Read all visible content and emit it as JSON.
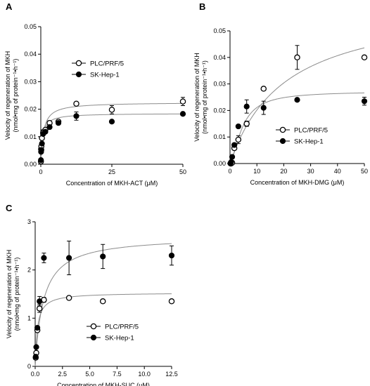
{
  "chart_data": [
    {
      "type": "scatter",
      "panel_label": "A",
      "xlabel": "Concentration of MKH-ACT (μM)",
      "ylabel_line1": "Velocity of regeneration of MKH",
      "ylabel_line2": "(nmol•mg of protein⁻¹•h⁻¹)",
      "xlim": [
        0,
        50
      ],
      "ylim": [
        0,
        0.05
      ],
      "xticks": [
        0,
        25,
        50
      ],
      "yticks": [
        0,
        0.01,
        0.02,
        0.03,
        0.04,
        0.05
      ],
      "xtick_labels": [
        "0",
        "25",
        "50"
      ],
      "ytick_labels": [
        "0.00",
        "0.01",
        "0.02",
        "0.03",
        "0.04",
        "0.05"
      ],
      "legend_position": "top-right",
      "series": [
        {
          "name": "PLC/PRF/5",
          "marker": "open-circle",
          "fit": {
            "vmax": 0.0225,
            "km": 0.9
          },
          "points": [
            {
              "x": 0.05,
              "y": 0.001,
              "err": 0
            },
            {
              "x": 0.1,
              "y": 0.0055,
              "err": 0
            },
            {
              "x": 0.2,
              "y": 0.0065,
              "err": 0
            },
            {
              "x": 0.4,
              "y": 0.0095,
              "err": 0
            },
            {
              "x": 0.8,
              "y": 0.0115,
              "err": 0.001
            },
            {
              "x": 1.6,
              "y": 0.0125,
              "err": 0.0005
            },
            {
              "x": 3.1,
              "y": 0.015,
              "err": 0.0008
            },
            {
              "x": 6.2,
              "y": 0.0155,
              "err": 0.0005
            },
            {
              "x": 12.5,
              "y": 0.022,
              "err": 0.0005
            },
            {
              "x": 25,
              "y": 0.0198,
              "err": 0.0015
            },
            {
              "x": 50,
              "y": 0.0228,
              "err": 0.0015
            }
          ]
        },
        {
          "name": "SK-Hep-1",
          "marker": "filled-circle",
          "fit": {
            "vmax": 0.0185,
            "km": 0.6
          },
          "points": [
            {
              "x": 0.05,
              "y": 0.0015,
              "err": 0
            },
            {
              "x": 0.1,
              "y": 0.0045,
              "err": 0
            },
            {
              "x": 0.2,
              "y": 0.0052,
              "err": 0
            },
            {
              "x": 0.4,
              "y": 0.0075,
              "err": 0
            },
            {
              "x": 0.8,
              "y": 0.011,
              "err": 0
            },
            {
              "x": 1.6,
              "y": 0.0118,
              "err": 0.0005
            },
            {
              "x": 3.1,
              "y": 0.0135,
              "err": 0.0005
            },
            {
              "x": 6.2,
              "y": 0.015,
              "err": 0.0005
            },
            {
              "x": 12.5,
              "y": 0.0175,
              "err": 0.0015
            },
            {
              "x": 25,
              "y": 0.0155,
              "err": 0
            },
            {
              "x": 50,
              "y": 0.0183,
              "err": 0
            }
          ]
        }
      ]
    },
    {
      "type": "scatter",
      "panel_label": "B",
      "xlabel": "Concentration of MKH-DMG (μM)",
      "ylabel_line1": "Velocity of regeneration of MKH",
      "ylabel_line2": "(nmol•mg of protein⁻¹•h⁻¹)",
      "xlim": [
        0,
        50
      ],
      "ylim": [
        0,
        0.05
      ],
      "xticks": [
        0,
        10,
        20,
        30,
        40,
        50
      ],
      "yticks": [
        0,
        0.01,
        0.02,
        0.03,
        0.04,
        0.05
      ],
      "xtick_labels": [
        "0",
        "10",
        "20",
        "30",
        "40",
        "50"
      ],
      "ytick_labels": [
        "0.00",
        "0.01",
        "0.02",
        "0.03",
        "0.04",
        "0.05"
      ],
      "legend_position": "bottom-right",
      "series": [
        {
          "name": "PLC/PRF/5",
          "marker": "open-circle",
          "fit": {
            "vmax": 0.0615,
            "km": 20.5,
            "hill": 1.0
          },
          "points": [
            {
              "x": 0.2,
              "y": 0.0,
              "err": 0
            },
            {
              "x": 0.4,
              "y": 0.0,
              "err": 0
            },
            {
              "x": 0.8,
              "y": 0.0003,
              "err": 0
            },
            {
              "x": 1.6,
              "y": 0.0058,
              "err": 0.0005
            },
            {
              "x": 3.1,
              "y": 0.009,
              "err": 0.0015
            },
            {
              "x": 6.2,
              "y": 0.015,
              "err": 0.001
            },
            {
              "x": 12.5,
              "y": 0.0282,
              "err": 0.0005
            },
            {
              "x": 25,
              "y": 0.04,
              "err": 0.0045
            },
            {
              "x": 50,
              "y": 0.04,
              "err": 0
            }
          ]
        },
        {
          "name": "SK-Hep-1",
          "marker": "filled-circle",
          "fit": {
            "vmax": 0.0272,
            "km": 4.6,
            "hill": 1.6
          },
          "points": [
            {
              "x": 0.2,
              "y": 0.0002,
              "err": 0
            },
            {
              "x": 0.4,
              "y": 0.0005,
              "err": 0
            },
            {
              "x": 0.8,
              "y": 0.0025,
              "err": 0
            },
            {
              "x": 1.6,
              "y": 0.007,
              "err": 0.0005
            },
            {
              "x": 3.1,
              "y": 0.014,
              "err": 0.0005
            },
            {
              "x": 6.2,
              "y": 0.0215,
              "err": 0.0025
            },
            {
              "x": 12.5,
              "y": 0.021,
              "err": 0.0025
            },
            {
              "x": 25,
              "y": 0.024,
              "err": 0
            },
            {
              "x": 50,
              "y": 0.0235,
              "err": 0.0015
            }
          ]
        }
      ]
    },
    {
      "type": "scatter",
      "panel_label": "C",
      "xlabel": "Concentration of MKH-SUC (μM)",
      "ylabel_line1": "Velocity of regeneration of MKH",
      "ylabel_line2": "(nmol•mg of protein⁻¹•h⁻¹)",
      "xlim": [
        0,
        12.5
      ],
      "ylim": [
        0,
        3
      ],
      "xticks": [
        0,
        2.5,
        5,
        7.5,
        10,
        12.5
      ],
      "yticks": [
        0,
        1,
        2,
        3
      ],
      "xtick_labels": [
        "0.0",
        "2.5",
        "5.0",
        "7.5",
        "10.0",
        "12.5"
      ],
      "ytick_labels": [
        "0",
        "1",
        "2",
        "3"
      ],
      "legend_position": "bottom-center",
      "series": [
        {
          "name": "PLC/PRF/5",
          "marker": "open-circle",
          "fit": {
            "vmax": 1.53,
            "km": 0.2
          },
          "points": [
            {
              "x": 0.05,
              "y": 0.18,
              "err": 0
            },
            {
              "x": 0.1,
              "y": 0.28,
              "err": 0
            },
            {
              "x": 0.2,
              "y": 0.75,
              "err": 0
            },
            {
              "x": 0.4,
              "y": 1.2,
              "err": 0.08
            },
            {
              "x": 0.8,
              "y": 1.38,
              "err": 0.05
            },
            {
              "x": 3.1,
              "y": 1.42,
              "err": 0
            },
            {
              "x": 6.2,
              "y": 1.35,
              "err": 0
            },
            {
              "x": 12.5,
              "y": 1.35,
              "err": 0
            }
          ]
        },
        {
          "name": "SK-Hep-1",
          "marker": "filled-circle",
          "fit": {
            "vmax": 2.7,
            "km": 0.75
          },
          "points": [
            {
              "x": 0.05,
              "y": 0.2,
              "err": 0
            },
            {
              "x": 0.1,
              "y": 0.4,
              "err": 0
            },
            {
              "x": 0.2,
              "y": 0.8,
              "err": 0
            },
            {
              "x": 0.4,
              "y": 1.35,
              "err": 0.1
            },
            {
              "x": 0.8,
              "y": 2.25,
              "err": 0.1
            },
            {
              "x": 3.1,
              "y": 2.25,
              "err": 0.35
            },
            {
              "x": 6.2,
              "y": 2.28,
              "err": 0.25
            },
            {
              "x": 12.5,
              "y": 2.3,
              "err": 0.2
            }
          ]
        }
      ]
    }
  ]
}
